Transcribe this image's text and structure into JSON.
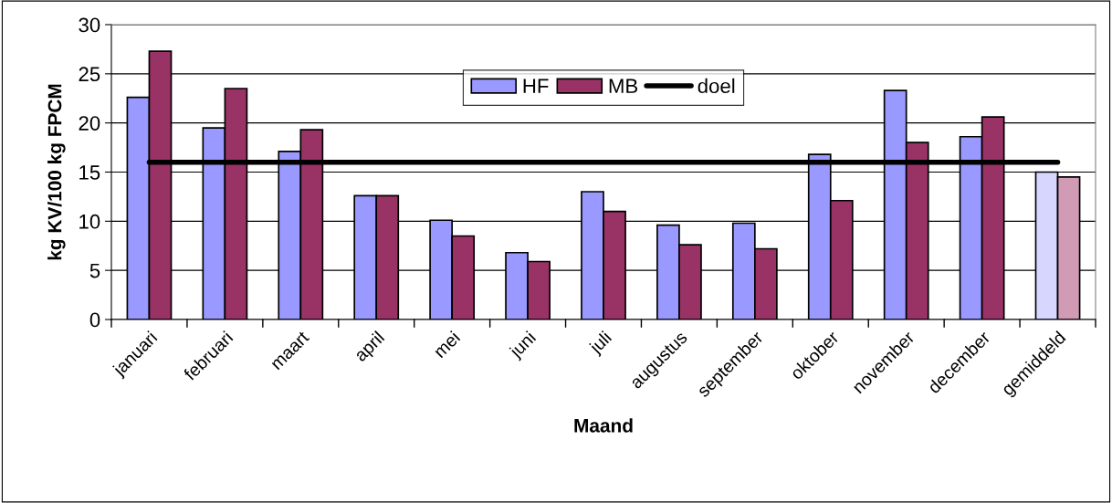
{
  "chart_data": {
    "type": "bar",
    "xlabel": "Maand",
    "ylabel": "kg KV/100 kg FPCM",
    "categories": [
      "januari",
      "februari",
      "maart",
      "april",
      "mei",
      "juni",
      "juli",
      "augustus",
      "september",
      "oktober",
      "november",
      "december",
      "gemiddeld"
    ],
    "series": [
      {
        "name": "HF",
        "color": "#9999ff",
        "colors": [
          "#9999ff",
          "#9999ff",
          "#9999ff",
          "#9999ff",
          "#9999ff",
          "#9999ff",
          "#9999ff",
          "#9999ff",
          "#9999ff",
          "#9999ff",
          "#9999ff",
          "#9999ff",
          "#d6d6ff"
        ],
        "values": [
          22.6,
          19.5,
          17.1,
          12.6,
          10.1,
          6.8,
          13.0,
          9.6,
          9.8,
          16.8,
          23.3,
          18.6,
          15.0
        ]
      },
      {
        "name": "MB",
        "color": "#993366",
        "colors": [
          "#993366",
          "#993366",
          "#993366",
          "#993366",
          "#993366",
          "#993366",
          "#993366",
          "#993366",
          "#993366",
          "#993366",
          "#993366",
          "#993366",
          "#d19ab5"
        ],
        "values": [
          27.3,
          23.5,
          19.3,
          12.6,
          8.5,
          5.9,
          11.0,
          7.6,
          7.2,
          12.1,
          18.0,
          20.6,
          14.5
        ]
      },
      {
        "name": "doel",
        "type": "line",
        "color": "#000000",
        "values": [
          16,
          16,
          16,
          16,
          16,
          16,
          16,
          16,
          16,
          16,
          16,
          16,
          16
        ]
      }
    ],
    "ylim": [
      0,
      30
    ],
    "yticks": [
      0,
      5,
      10,
      15,
      20,
      25,
      30
    ],
    "grid": "y",
    "legend": "top",
    "marker": "none",
    "line_style": "solid"
  }
}
